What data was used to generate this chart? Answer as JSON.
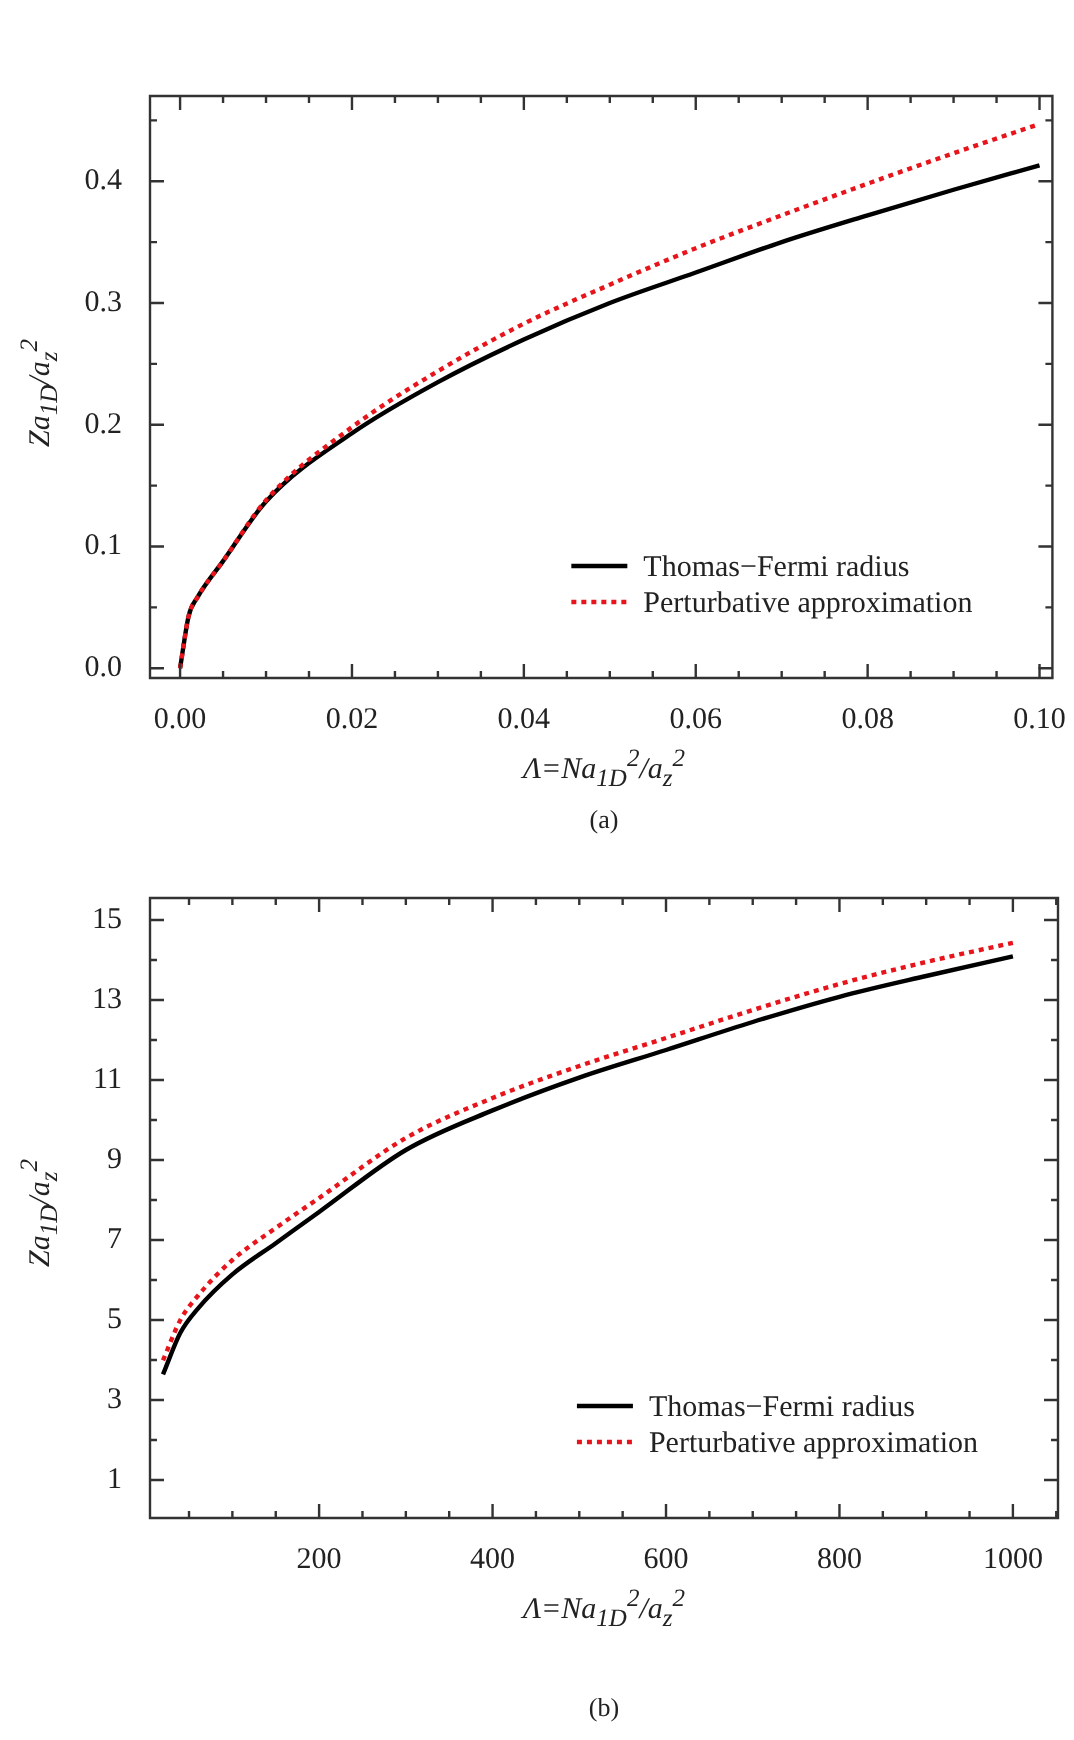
{
  "chart_data": [
    {
      "type": "line",
      "xlabel": "Λ=Na$_{1D}$$^{2}$/a$_{z}$$^{2}$",
      "ylabel": "Za$_{1D}$/a$_{z}$$^{2}$",
      "annotations": [
        "(a)"
      ],
      "x": [
        0,
        0.001,
        0.002,
        0.005,
        0.01,
        0.02,
        0.03,
        0.04,
        0.05,
        0.06,
        0.07,
        0.08,
        0.09,
        0.1
      ],
      "series": [
        {
          "name": "Thomas−Fermi radius",
          "color": "#000000",
          "line_style": "solid",
          "values": [
            0,
            0.043,
            0.058,
            0.088,
            0.137,
            0.193,
            0.235,
            0.27,
            0.3,
            0.325,
            0.35,
            0.372,
            0.393,
            0.413
          ]
        },
        {
          "name": "Perturbative approximation",
          "color": "#e8141b",
          "line_style": "dotted",
          "values": [
            0,
            0.043,
            0.058,
            0.088,
            0.138,
            0.198,
            0.244,
            0.283,
            0.315,
            0.345,
            0.372,
            0.398,
            0.423,
            0.447
          ]
        }
      ],
      "xlim": [
        -0.0035,
        0.1015
      ],
      "ylim": [
        -0.008,
        0.47
      ],
      "xticks": [
        {
          "value": 0,
          "label": "0.00"
        },
        {
          "value": 0.02,
          "label": "0.02"
        },
        {
          "value": 0.04,
          "label": "0.04"
        },
        {
          "value": 0.06,
          "label": "0.06"
        },
        {
          "value": 0.08,
          "label": "0.08"
        },
        {
          "value": 0.1,
          "label": "0.10"
        }
      ],
      "yticks": [
        {
          "value": 0,
          "label": "0.0"
        },
        {
          "value": 0.1,
          "label": "0.1"
        },
        {
          "value": 0.2,
          "label": "0.2"
        },
        {
          "value": 0.3,
          "label": "0.3"
        },
        {
          "value": 0.4,
          "label": "0.4"
        }
      ],
      "grid": false,
      "legend": "bottom right",
      "marker": "none"
    },
    {
      "type": "line",
      "xlabel": "Λ=Na$_{1D}$$^{2}$/a$_{z}$$^{2}$",
      "ylabel": "Za$_{1D}$/a$_{z}$$^{2}$",
      "annotations": [
        "(b)"
      ],
      "x": [
        20,
        40,
        60,
        100,
        150,
        200,
        300,
        400,
        500,
        600,
        700,
        800,
        900,
        1000
      ],
      "series": [
        {
          "name": "Thomas−Fermi radius",
          "color": "#000000",
          "line_style": "solid",
          "values": [
            3.64,
            4.68,
            5.28,
            6.14,
            6.92,
            7.7,
            9.25,
            10.24,
            11.06,
            11.75,
            12.45,
            13.08,
            13.6,
            14.09
          ]
        },
        {
          "name": "Perturbative approximation",
          "color": "#e8141b",
          "line_style": "dotted",
          "values": [
            3.99,
            5.0,
            5.6,
            6.5,
            7.3,
            8.05,
            9.55,
            10.55,
            11.35,
            12.05,
            12.75,
            13.4,
            13.95,
            14.43
          ]
        }
      ],
      "xlim": [
        5,
        1052
      ],
      "ylim": [
        0.05,
        15.55
      ],
      "xticks": [
        200,
        400,
        600,
        800,
        1000
      ],
      "yticks": [
        1,
        3,
        5,
        7,
        9,
        11,
        13,
        15
      ],
      "grid": false,
      "legend": "bottom right",
      "marker": "none"
    }
  ]
}
